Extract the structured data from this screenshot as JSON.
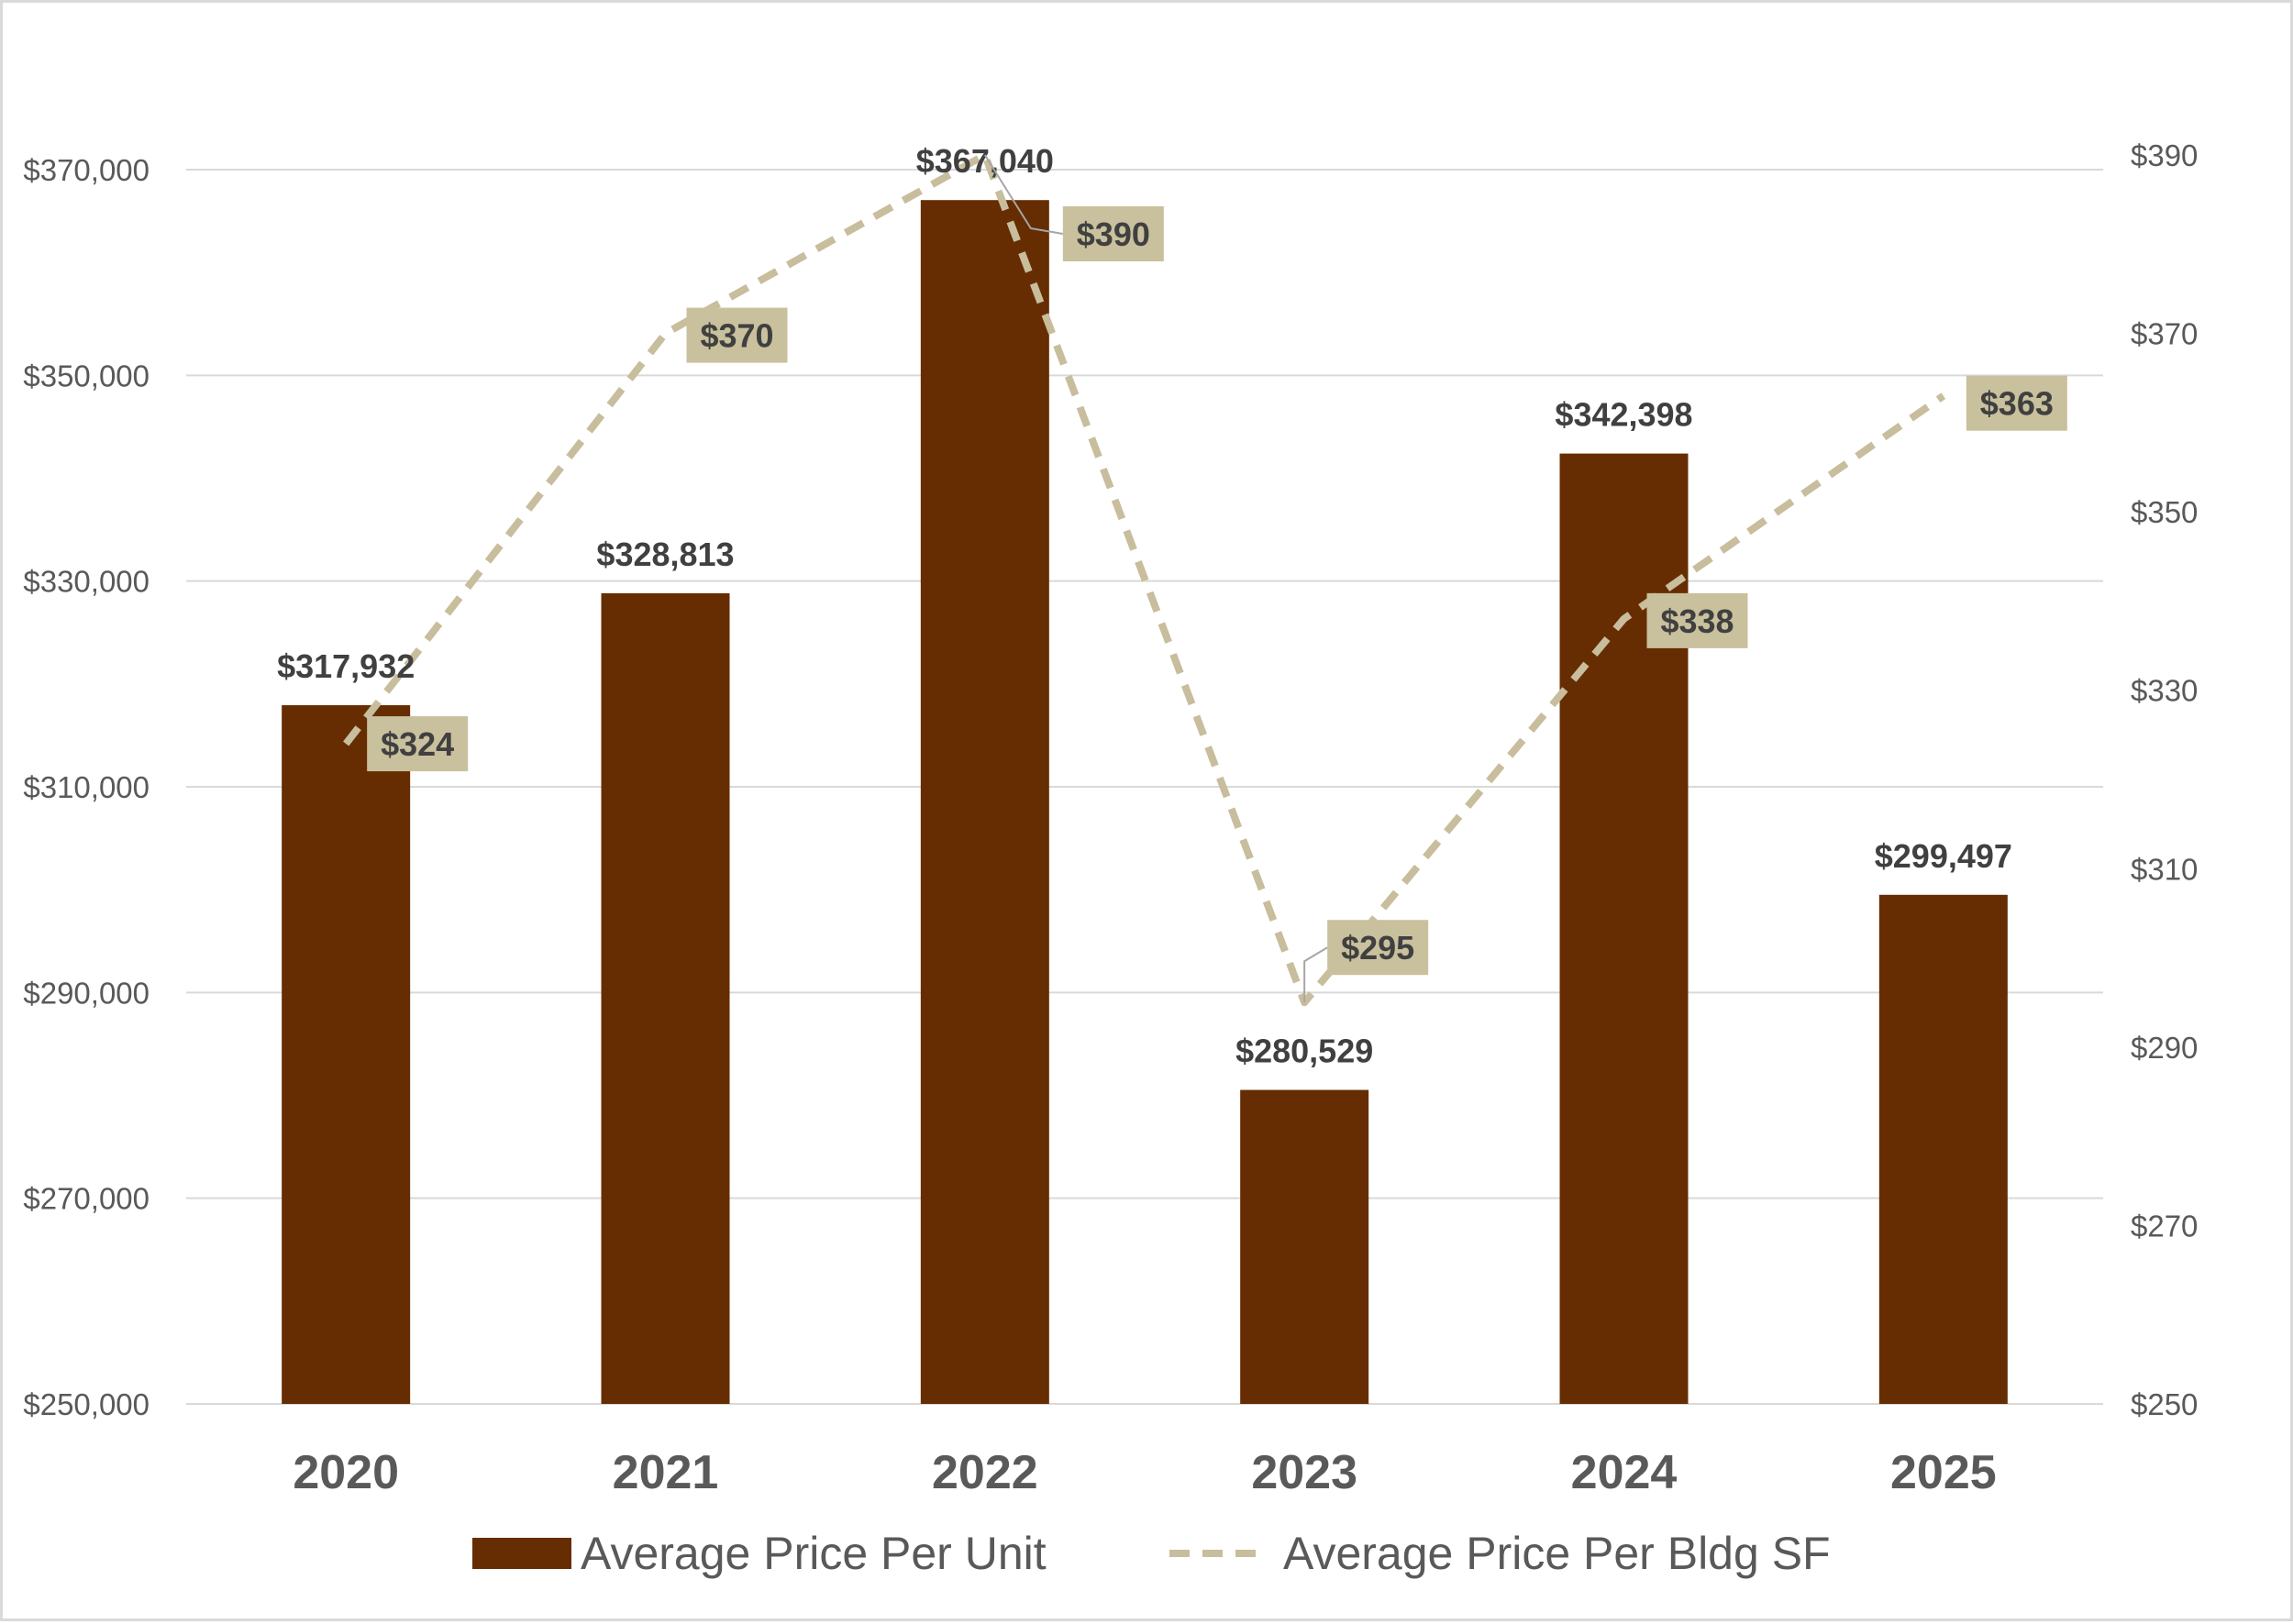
{
  "colors": {
    "bar": "#662d02",
    "line": "#c8bd9c",
    "label_box": "#c9c09d",
    "grid": "#d9d9d9",
    "axis_text": "#595959",
    "label_text": "#404040"
  },
  "chart_data": {
    "type": "bar",
    "categories": [
      "2020",
      "2021",
      "2022",
      "2023",
      "2024",
      "2025"
    ],
    "series": [
      {
        "name": "Average Price Per Unit",
        "type": "bar",
        "axis": "left",
        "values": [
          317932,
          328813,
          367040,
          280529,
          342398,
          299497
        ],
        "labels": [
          "$317,932",
          "$328,813",
          "$367,040",
          "$280,529",
          "$342,398",
          "$299,497"
        ]
      },
      {
        "name": "Average Price Per Bldg SF",
        "type": "line",
        "style": "dashed",
        "axis": "right",
        "values": [
          324,
          370,
          390,
          295,
          338,
          363
        ],
        "labels": [
          "$324",
          "$370",
          "$390",
          "$295",
          "$338",
          "$363"
        ]
      }
    ],
    "y_left": {
      "min": 250000,
      "max": 370000,
      "ticks": [
        250000,
        270000,
        290000,
        310000,
        330000,
        350000,
        370000
      ],
      "tick_labels": [
        "$250,000",
        "$270,000",
        "$290,000",
        "$310,000",
        "$330,000",
        "$350,000",
        "$370,000"
      ]
    },
    "y_right": {
      "min": 250,
      "max": 390,
      "ticks": [
        250,
        270,
        290,
        310,
        330,
        350,
        370,
        390
      ],
      "tick_labels": [
        "$250",
        "$270",
        "$290",
        "$310",
        "$330",
        "$350",
        "$370",
        "$390"
      ]
    },
    "grid": true,
    "legend_position": "bottom",
    "title": "",
    "xlabel": "",
    "ylabel": ""
  }
}
